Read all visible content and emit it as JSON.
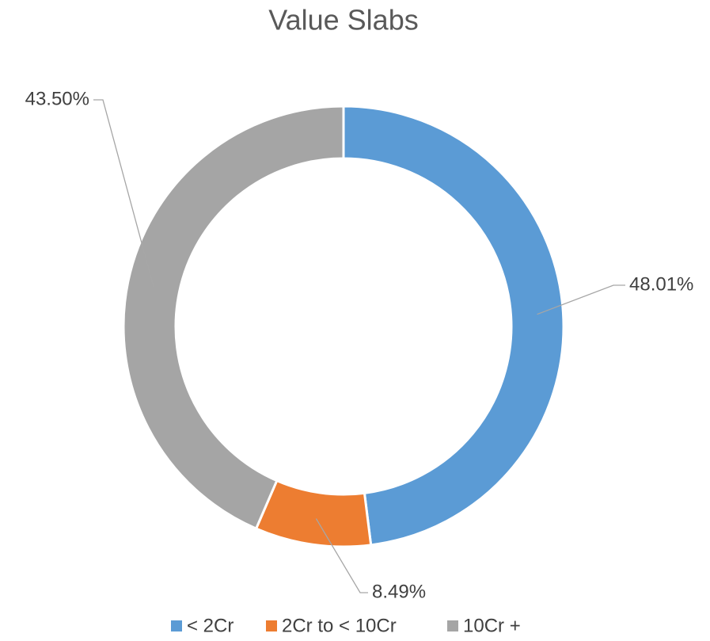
{
  "chart_data": {
    "type": "donut",
    "title": "Value Slabs",
    "categories": [
      "< 2Cr",
      "2Cr to < 10Cr",
      "10Cr +"
    ],
    "values": [
      48.01,
      8.49,
      43.5
    ],
    "value_labels": [
      "48.01%",
      "8.49%",
      "43.50%"
    ],
    "colors": [
      "#5b9bd5",
      "#ed7d31",
      "#a5a5a5"
    ],
    "legend": "bottom"
  }
}
